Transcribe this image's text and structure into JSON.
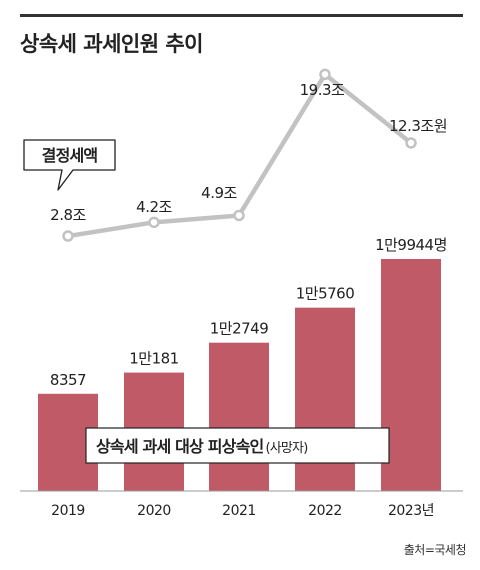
{
  "title": "상속세 과세인원 추이",
  "source": "출처=국세청",
  "colors": {
    "bar": "#c05a66",
    "line": "#c2c2c2",
    "point_fill": "#ffffff",
    "text": "#222222",
    "rule": "#333333"
  },
  "chart_data": [
    {
      "type": "bar",
      "label_box": {
        "main": "상속세 과세 대상 피상속인",
        "sub": "(사망자)"
      },
      "categories": [
        "2019",
        "2020",
        "2021",
        "2022",
        "2023년"
      ],
      "values": [
        8357,
        10181,
        12749,
        15760,
        19944
      ],
      "value_labels": [
        "8357",
        "1만181",
        "1만2749",
        "1만5760",
        "1만9944명"
      ]
    },
    {
      "type": "line",
      "label_box": "결정세액",
      "categories": [
        "2019",
        "2020",
        "2021",
        "2022",
        "2023년"
      ],
      "values": [
        2.8,
        4.2,
        4.9,
        19.3,
        12.3
      ],
      "value_labels": [
        "2.8조",
        "4.2조",
        "4.9조",
        "19.3조",
        "12.3조원"
      ]
    }
  ]
}
